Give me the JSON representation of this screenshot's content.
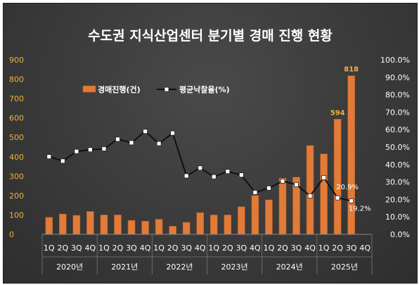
{
  "chart_data": {
    "type": "bar+line",
    "title": "수도권 지식산업센터 분기별 경매 진행 현황",
    "quarters": [
      "1Q",
      "2Q",
      "3Q",
      "4Q",
      "1Q",
      "2Q",
      "3Q",
      "4Q",
      "1Q",
      "2Q",
      "3Q",
      "4Q",
      "1Q",
      "2Q",
      "3Q",
      "4Q",
      "1Q",
      "2Q",
      "3Q",
      "4Q",
      "1Q",
      "2Q",
      "3Q",
      "4Q"
    ],
    "years": [
      "2020년",
      "2021년",
      "2022년",
      "2023년",
      "2024년",
      "2025년"
    ],
    "left_axis": {
      "min": 0,
      "max": 900,
      "ticks": [
        "0",
        "100",
        "200",
        "300",
        "400",
        "500",
        "600",
        "700",
        "800",
        "900"
      ]
    },
    "right_axis": {
      "min": 0,
      "max": 100,
      "ticks": [
        "0.0%",
        "10.0%",
        "20.0%",
        "30.0%",
        "40.0%",
        "50.0%",
        "60.0%",
        "70.0%",
        "80.0%",
        "90.0%",
        "100.0%"
      ]
    },
    "series": [
      {
        "name": "경매진행(건)",
        "type": "bar",
        "axis": "left",
        "color": "#e07b39",
        "values": [
          88,
          105,
          98,
          118,
          100,
          100,
          72,
          68,
          78,
          42,
          62,
          112,
          100,
          100,
          142,
          200,
          178,
          290,
          295,
          458,
          415,
          594,
          818,
          null
        ]
      },
      {
        "name": "평균낙찰율(%)",
        "type": "line",
        "axis": "right",
        "color": "#000000",
        "values": [
          44.5,
          42.0,
          47.5,
          48.5,
          49.0,
          54.5,
          52.5,
          59.0,
          52.0,
          58.0,
          33.5,
          38.0,
          33.0,
          36.0,
          34.0,
          24.0,
          26.5,
          30.5,
          28.5,
          22.0,
          32.5,
          20.9,
          19.2,
          null
        ]
      }
    ],
    "data_labels": [
      {
        "series": 0,
        "index": 21,
        "text": "594"
      },
      {
        "series": 0,
        "index": 22,
        "text": "818"
      },
      {
        "series": 1,
        "index": 21,
        "text": "20.9%"
      },
      {
        "series": 1,
        "index": 22,
        "text": "19.2%"
      }
    ],
    "legend_position": "top-left",
    "grid": false
  }
}
